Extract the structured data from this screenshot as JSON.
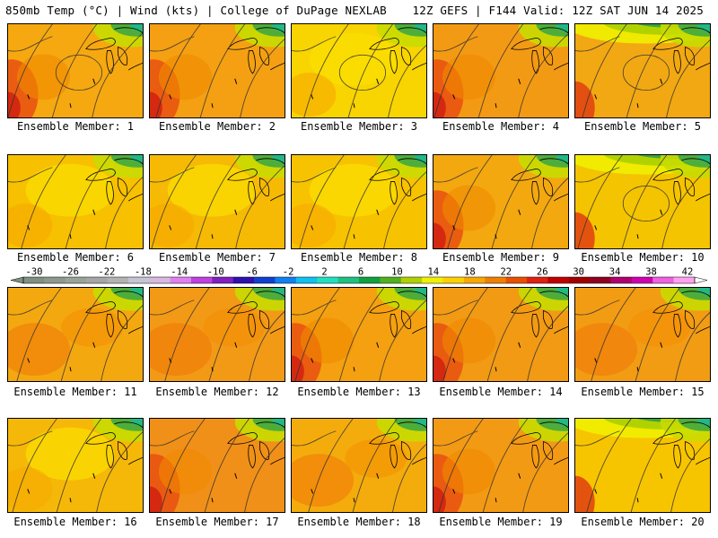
{
  "header": {
    "left_text": "850mb Temp (°C) | Wind (kts) | College of DuPage NEXLAB",
    "right_text": "12Z GEFS | F144 Valid: 12Z SAT JUN 14 2025"
  },
  "colorbar": {
    "labels": [
      "-30",
      "-26",
      "-22",
      "-18",
      "-14",
      "-10",
      "-6",
      "-2",
      "2",
      "6",
      "10",
      "14",
      "18",
      "22",
      "26",
      "30",
      "34",
      "38",
      "42"
    ],
    "colors": [
      "#7f8f80",
      "#8c998c",
      "#99a399",
      "#a6a6a6",
      "#b3b3b3",
      "#c4c4d4",
      "#d8b8e0",
      "#e080f0",
      "#c040e0",
      "#8020c0",
      "#3010b0",
      "#1040d0",
      "#1080f0",
      "#10c0f0",
      "#20e0c0",
      "#20c080",
      "#10a040",
      "#50b020",
      "#b0d000",
      "#f0f000",
      "#ffd000",
      "#f8a800",
      "#f08000",
      "#e85000",
      "#e02010",
      "#c00000",
      "#a00000",
      "#900020",
      "#b00070",
      "#d000b0",
      "#f060e0",
      "#ffa0f0"
    ]
  },
  "panels": [
    {
      "label": "Ensemble Member: 1",
      "base": "#f6a810",
      "theme": "hotleft"
    },
    {
      "label": "Ensemble Member: 2",
      "base": "#f4a012",
      "theme": "hotleft"
    },
    {
      "label": "Ensemble Member: 3",
      "base": "#f8d400",
      "theme": "yellow"
    },
    {
      "label": "Ensemble Member: 4",
      "base": "#f39a14",
      "theme": "hotleft"
    },
    {
      "label": "Ensemble Member: 5",
      "base": "#f2a812",
      "theme": "greentop"
    },
    {
      "label": "Ensemble Member: 6",
      "base": "#f7c000",
      "theme": "yellow"
    },
    {
      "label": "Ensemble Member: 7",
      "base": "#f6ba04",
      "theme": "yellow"
    },
    {
      "label": "Ensemble Member: 8",
      "base": "#f7c200",
      "theme": "yellow"
    },
    {
      "label": "Ensemble Member: 9",
      "base": "#f3a810",
      "theme": "hotleft"
    },
    {
      "label": "Ensemble Member: 10",
      "base": "#f5c400",
      "theme": "greentop"
    },
    {
      "label": "Ensemble Member: 11",
      "base": "#f4a810",
      "theme": "orange"
    },
    {
      "label": "Ensemble Member: 12",
      "base": "#f29a16",
      "theme": "orange"
    },
    {
      "label": "Ensemble Member: 13",
      "base": "#f4a010",
      "theme": "hotleft"
    },
    {
      "label": "Ensemble Member: 14",
      "base": "#f29a14",
      "theme": "hotleft"
    },
    {
      "label": "Ensemble Member: 15",
      "base": "#f29c14",
      "theme": "orange"
    },
    {
      "label": "Ensemble Member: 16",
      "base": "#f6b808",
      "theme": "yellow"
    },
    {
      "label": "Ensemble Member: 17",
      "base": "#f09018",
      "theme": "hotleft"
    },
    {
      "label": "Ensemble Member: 18",
      "base": "#f4ac0c",
      "theme": "orange"
    },
    {
      "label": "Ensemble Member: 19",
      "base": "#f39a14",
      "theme": "hotleft"
    },
    {
      "label": "Ensemble Member: 20",
      "base": "#f7c400",
      "theme": "greentop"
    }
  ]
}
